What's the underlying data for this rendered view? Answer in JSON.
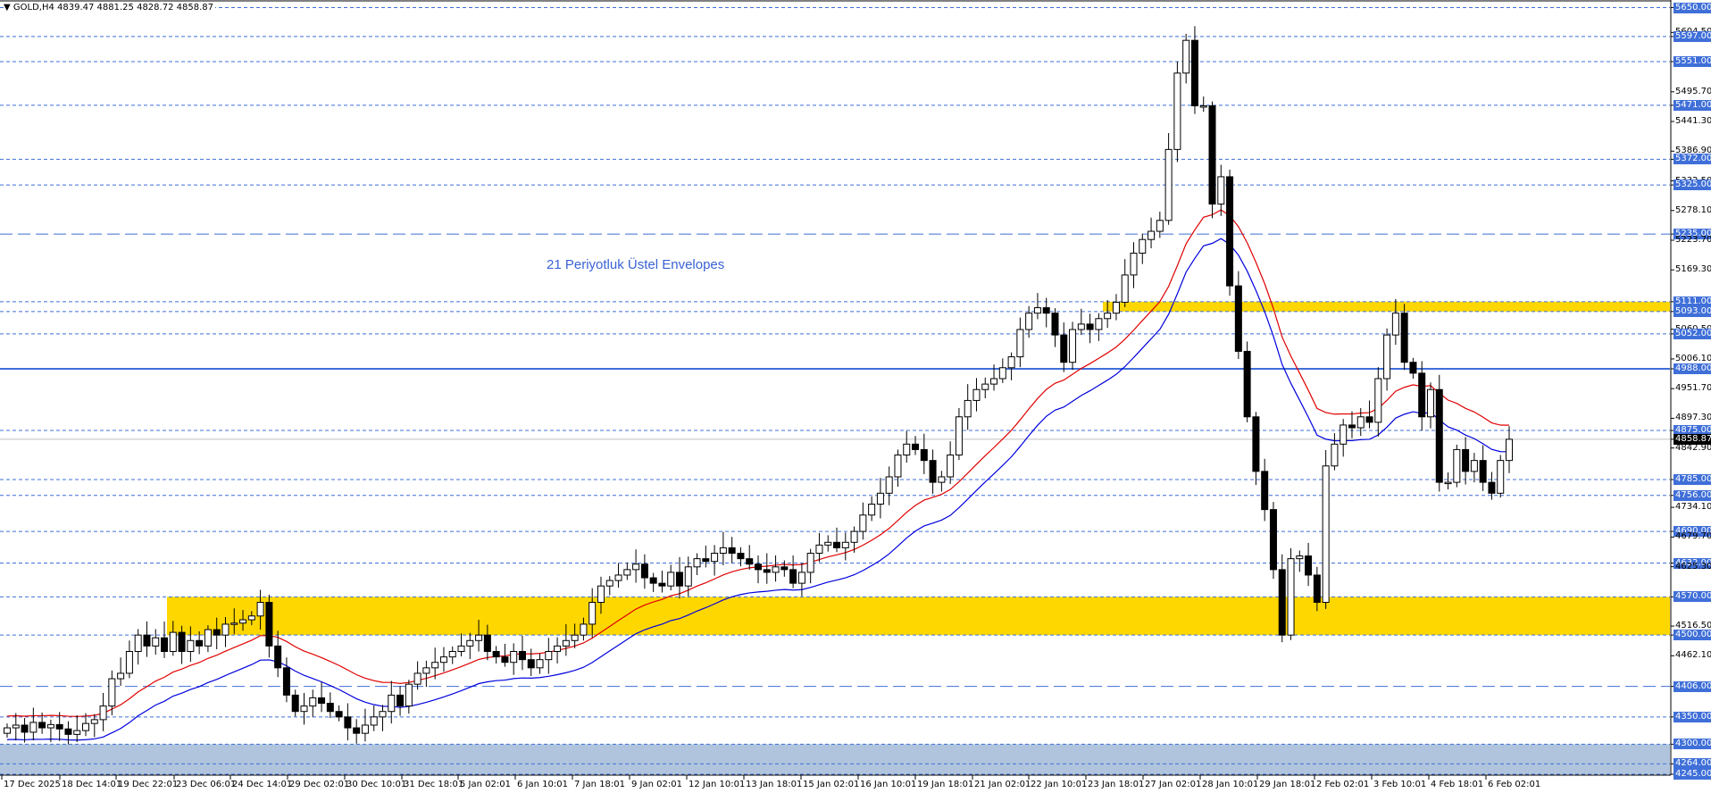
{
  "header": {
    "symbol_line": "GOLD,H4  4839.47 4881.25 4828.72 4858.87",
    "symbol": "GOLD",
    "timeframe": "H4",
    "open": 4839.47,
    "high": 4881.25,
    "low": 4828.72,
    "close": 4858.87
  },
  "annotation": "21 Periyotluk Üstel Envelopes",
  "colors": {
    "level_line": "#3f6fd8",
    "zone_yellow": "#ffd700",
    "zone_blue": "#b0c4de",
    "envelope_upper": "#e00000",
    "envelope_lower": "#0000dd",
    "bid_line": "#c0c0c0",
    "candle_bull": "#ffffff",
    "candle_bear": "#000000"
  },
  "chart_data": {
    "type": "candlestick",
    "title": "GOLD,H4",
    "ylim": [
      4245,
      5650
    ],
    "current_price": 4858.87,
    "y_tick_labels": [
      "5650.00",
      "5604.50",
      "5597.00",
      "5551.00",
      "5495.70",
      "5471.00",
      "5441.30",
      "5386.90",
      "5372.00",
      "5332.50",
      "5325.00",
      "5278.10",
      "5235.00",
      "5223.70",
      "5169.30",
      "5111.00",
      "5093.00",
      "5060.50",
      "5052.00",
      "5006.10",
      "4988.00",
      "4951.70",
      "4897.30",
      "4875.00",
      "4858.87",
      "4842.90",
      "4785.00",
      "4756.00",
      "4734.10",
      "4690.00",
      "4679.70",
      "4632.00",
      "4625.30",
      "4570.00",
      "4516.50",
      "4500.00",
      "4462.10",
      "4406.00",
      "4350.00",
      "4300.00",
      "4264.00",
      "4245.00"
    ],
    "highlighted_levels": [
      5650,
      5597,
      5551,
      5471,
      5372,
      5325,
      5235,
      5111,
      5093,
      5052,
      4988,
      4875,
      4785,
      4756,
      4690,
      4632,
      4570,
      4500,
      4406,
      4350,
      4300,
      4264,
      4245
    ],
    "x_tick_labels": [
      "17 Dec 2025",
      "18 Dec 14:01",
      "19 Dec 22:01",
      "23 Dec 06:01",
      "24 Dec 14:01",
      "29 Dec 02:01",
      "30 Dec 10:01",
      "31 Dec 18:01",
      "5 Jan 02:01",
      "6 Jan 10:01",
      "7 Jan 18:01",
      "9 Jan 02:01",
      "12 Jan 10:01",
      "13 Jan 18:01",
      "15 Jan 02:01",
      "16 Jan 10:01",
      "19 Jan 18:01",
      "21 Jan 02:01",
      "22 Jan 10:01",
      "23 Jan 18:01",
      "27 Jan 02:01",
      "28 Jan 10:01",
      "29 Jan 18:01",
      "2 Feb 02:01",
      "3 Feb 10:01",
      "4 Feb 18:01",
      "6 Feb 02:01"
    ],
    "zones": [
      {
        "name": "supply-zone",
        "from": 5093,
        "to": 5111,
        "color": "#ffd700"
      },
      {
        "name": "demand-zone",
        "from": 4500,
        "to": 4570,
        "color": "#ffd700"
      },
      {
        "name": "low-zone",
        "from": 4245,
        "to": 4300,
        "color": "#b0c4de"
      }
    ],
    "solid_levels": [
      4988
    ],
    "long_dash_levels": [
      5235,
      4406
    ],
    "indicators": [
      {
        "name": "Envelope upper (21 EMA)",
        "color": "#e00000"
      },
      {
        "name": "Envelope lower (21 EMA)",
        "color": "#0000dd"
      }
    ],
    "peak": 5597,
    "trough": 4406,
    "xlabel": "",
    "ylabel": ""
  }
}
